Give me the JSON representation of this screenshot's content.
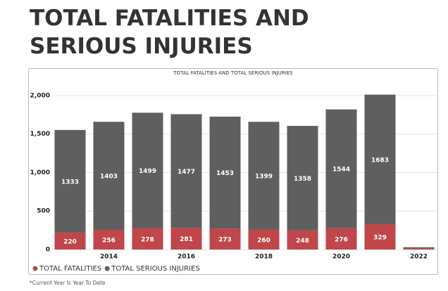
{
  "header": {
    "title": "TOTAL FATALITIES AND SERIOUS INJURIES"
  },
  "chart_data": {
    "type": "stacked-bar",
    "title": "TOTAL FATALITIES AND TOTAL SERIOUS INJURIES",
    "categories": [
      null,
      "2014",
      null,
      "2016",
      null,
      "2018",
      null,
      "2020",
      null,
      "2022"
    ],
    "series": [
      {
        "name": "TOTAL FATALITIES",
        "color": "#c0464a",
        "values": [
          220,
          256,
          278,
          281,
          273,
          260,
          248,
          276,
          329,
          15
        ]
      },
      {
        "name": "TOTAL SERIOUS INJURIES",
        "color": "#5f5f5f",
        "values": [
          1333,
          1403,
          1499,
          1477,
          1453,
          1399,
          1358,
          1544,
          1683,
          15
        ]
      }
    ],
    "ylim": [
      0,
      2100
    ],
    "yticks": [
      0,
      500,
      {
        "value": 1000,
        "label": "1,000"
      },
      {
        "value": 1500,
        "label": "1,500"
      },
      {
        "value": 2000,
        "label": "2,000"
      }
    ],
    "grid": true,
    "legend": "bottom-left"
  },
  "footnote": "*Current Year Is Year To Date"
}
